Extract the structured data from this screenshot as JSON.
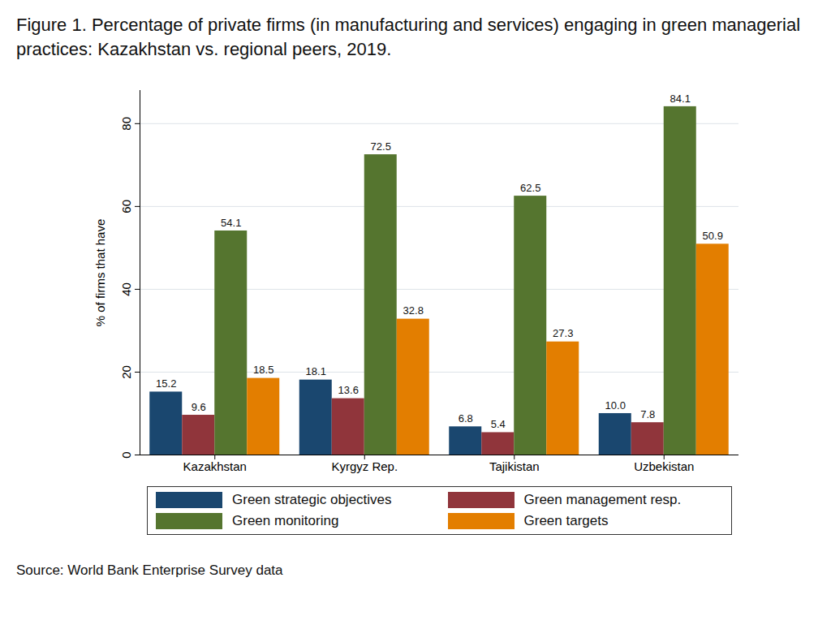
{
  "chart_data": {
    "type": "bar",
    "title": "Figure 1. Percentage of private firms (in manufacturing and services) engaging in green managerial practices: Kazakhstan vs. regional peers, 2019.",
    "source": "Source: World Bank Enterprise Survey data",
    "ylabel": "% of firms that have",
    "categories": [
      "Kazakhstan",
      "Kyrgyz Rep.",
      "Tajikistan",
      "Uzbekistan"
    ],
    "series": [
      {
        "name": "Green strategic objectives",
        "color": "#1a476f",
        "values": [
          15.2,
          18.1,
          6.8,
          10.0
        ],
        "value_labels": [
          "15.2",
          "18.1",
          "6.8",
          "10.0"
        ]
      },
      {
        "name": "Green management resp.",
        "color": "#90353b",
        "values": [
          9.6,
          13.6,
          5.4,
          7.8
        ],
        "value_labels": [
          "9.6",
          "13.6",
          "5.4",
          "7.8"
        ]
      },
      {
        "name": "Green monitoring",
        "color": "#55752f",
        "values": [
          54.1,
          72.5,
          62.5,
          84.1
        ],
        "value_labels": [
          "54.1",
          "72.5",
          "62.5",
          "84.1"
        ]
      },
      {
        "name": "Green targets",
        "color": "#e37e00",
        "values": [
          18.5,
          32.8,
          27.3,
          50.9
        ],
        "value_labels": [
          "18.5",
          "32.8",
          "27.3",
          "50.9"
        ]
      }
    ],
    "ylim": [
      0,
      88
    ],
    "yticks": [
      0,
      20,
      40,
      60,
      80
    ],
    "grid": true,
    "legend": "bottom",
    "data_labels": true
  }
}
